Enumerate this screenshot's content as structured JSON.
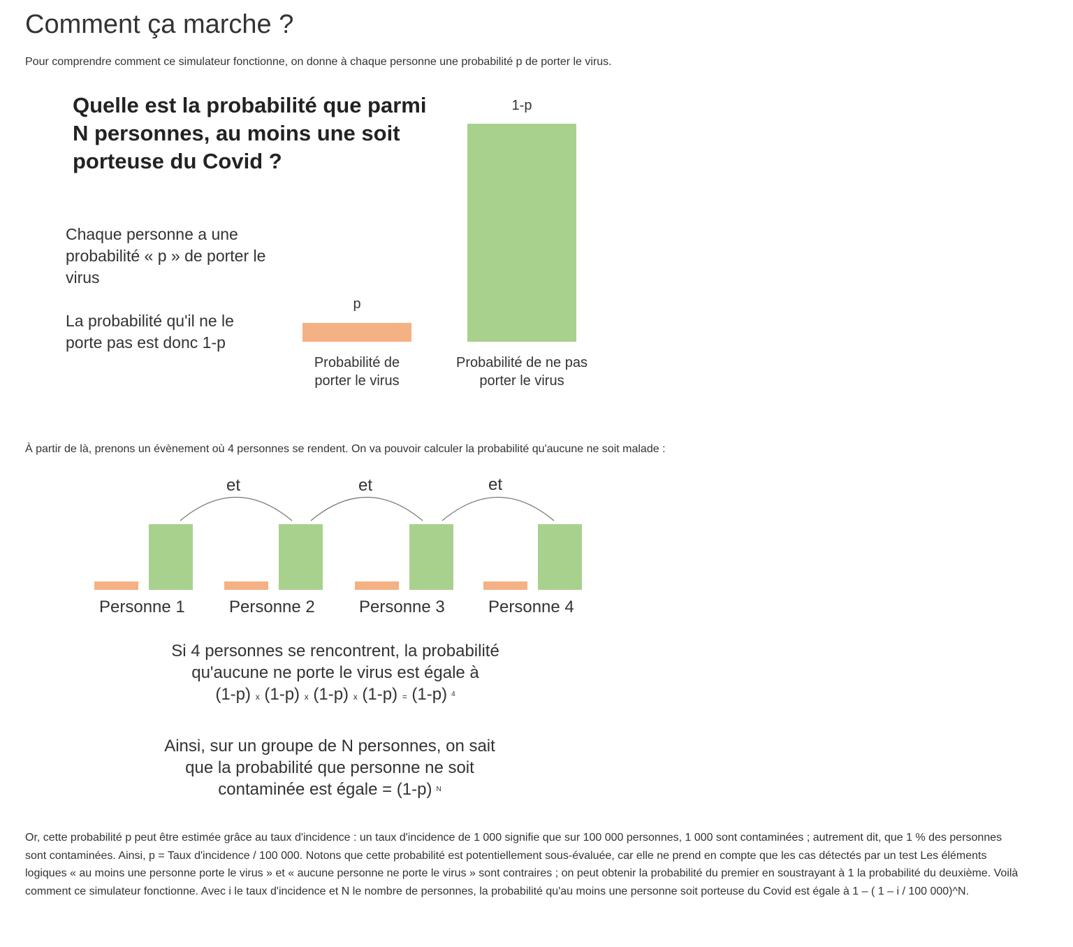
{
  "title": "Comment ça marche ?",
  "intro": "Pour comprendre comment ce simulateur fonctionne, on donne à chaque personne une probabilité p de porter le virus.",
  "figure1": {
    "question": "Quelle est la probabilité que parmi N personnes, au moins une soit porteuse du Covid ?",
    "text1": "Chaque personne a une probabilité « p » de porter le virus",
    "text2": "La probabilité qu'il ne le porte pas est donc 1-p",
    "bar_p_label": "p",
    "bar_1p_label": "1-p",
    "caption_p": "Probabilité de porter le virus",
    "caption_1p": "Probabilité de ne pas porter le virus",
    "colors": {
      "p": "#f4b183",
      "one_minus_p": "#a9d18e"
    }
  },
  "transition": "À partir de là, prenons un évènement où 4 personnes se rendent. On va pouvoir calculer la probabilité qu'aucune ne soit malade :",
  "figure2": {
    "connector": "et",
    "persons": [
      "Personne 1",
      "Personne 2",
      "Personne 3",
      "Personne 4"
    ],
    "text1_line1": "Si 4 personnes se rencontrent, la probabilité",
    "text1_line2": "qu'aucune ne porte le virus est égale à",
    "formula_term": "(1-p)",
    "times": "x",
    "equals": "=",
    "exp4": "4",
    "text2_line1": "Ainsi, sur un groupe de N personnes, on sait",
    "text2_line2": "que la probabilité que personne ne soit",
    "text2_line3": "contaminée est égale = (1-p)",
    "expN": "N"
  },
  "conclusion": "Or, cette probabilité p peut être estimée grâce au taux d'incidence : un taux d'incidence de 1 000 signifie que sur 100 000 personnes, 1 000 sont contaminées ; autrement dit, que 1 % des personnes sont contaminées. Ainsi, p = Taux d'incidence / 100 000. Notons que cette probabilité est potentiellement sous-évaluée, car elle ne prend en compte que les cas détectés par un test Les éléments logiques « au moins une personne porte le virus » et « aucune personne ne porte le virus » sont contraires ; on peut obtenir la probabilité du premier en soustrayant à 1 la probabilité du deuxième. Voilà comment ce simulateur fonctionne. Avec i le taux d'incidence et N le nombre de personnes, la probabilité qu'au moins une personne soit porteuse du Covid est égale à 1 – ( 1 – i / 100 000)^N."
}
